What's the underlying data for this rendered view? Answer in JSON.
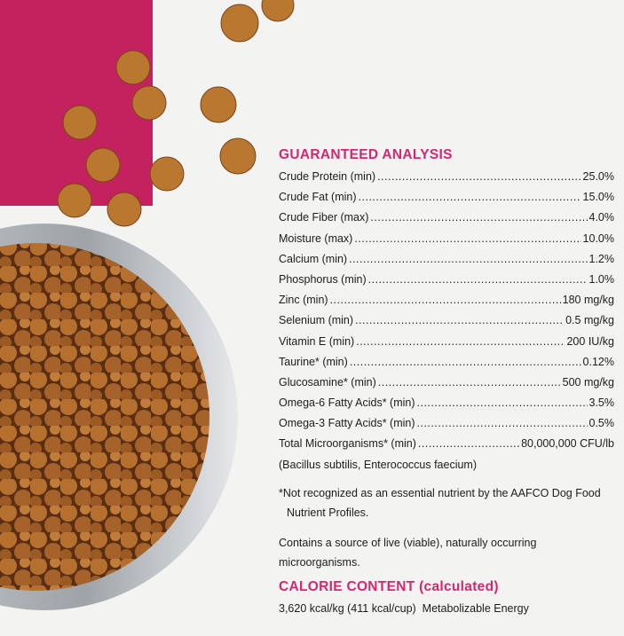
{
  "heading": "GUARANTEED ANALYSIS",
  "rows": [
    {
      "label": "Crude Protein (min)",
      "value": "25.0%"
    },
    {
      "label": "Crude Fat (min)",
      "value": "15.0%"
    },
    {
      "label": "Crude Fiber (max)",
      "value": "4.0%"
    },
    {
      "label": "Moisture (max)",
      "value": "10.0%"
    },
    {
      "label": "Calcium (min)",
      "value": "1.2%"
    },
    {
      "label": "Phosphorus (min)",
      "value": "1.0%"
    },
    {
      "label": "Zinc (min)",
      "value": "180 mg/kg"
    },
    {
      "label": "Selenium (min)",
      "value": "0.5 mg/kg"
    },
    {
      "label": "Vitamin E (min)",
      "value": "200 IU/kg"
    },
    {
      "label": "Taurine* (min)",
      "value": "0.12%"
    },
    {
      "label": "Glucosamine* (min)",
      "value": "500 mg/kg"
    },
    {
      "label": "Omega-6 Fatty Acids* (min)",
      "value": "3.5%"
    },
    {
      "label": "Omega-3 Fatty Acids* (min)",
      "value": "0.5%"
    },
    {
      "label": "Total Microorganisms* (min)",
      "value": "80,000,000 CFU/lb"
    }
  ],
  "strains": "(Bacillus subtilis, Enterococcus faecium)",
  "footnote": "*Not recognized as an essential nutrient by the AAFCO Dog Food Nutrient Profiles.",
  "probiotic_note": "Contains a source of live (viable), naturally occurring microorganisms.",
  "calorie_heading": "CALORIE CONTENT (calculated)",
  "calorie_text": "3,620 kcal/kg (411 kcal/cup)  Metabolizable Energy"
}
